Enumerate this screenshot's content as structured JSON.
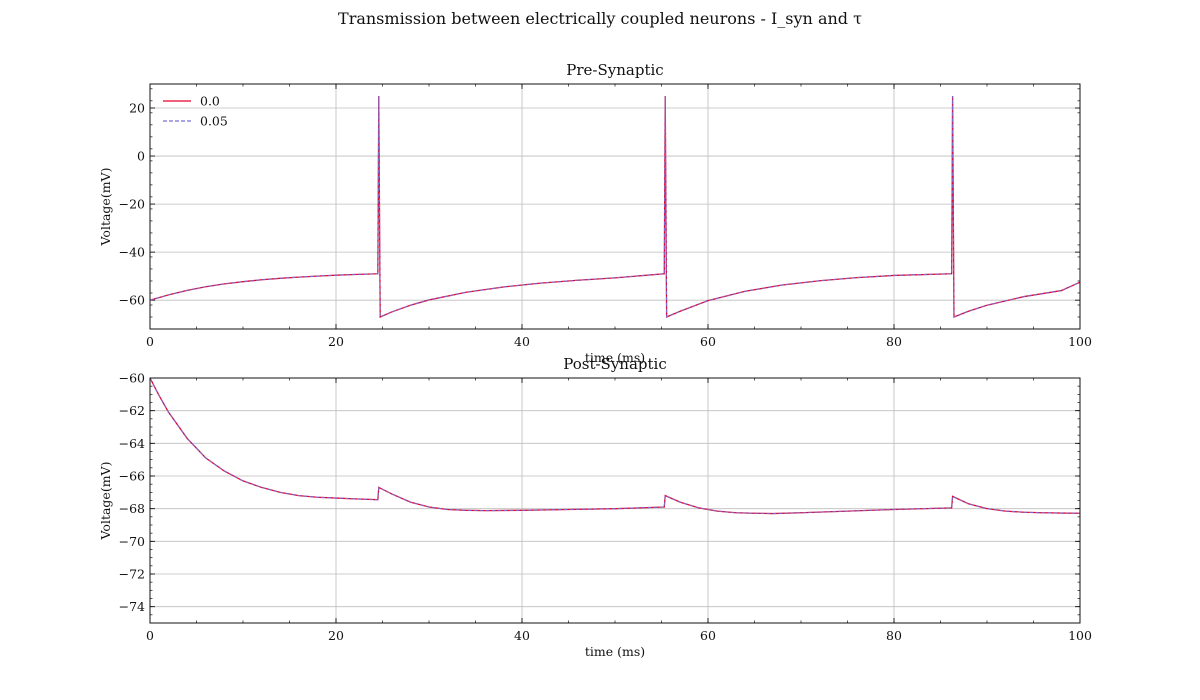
{
  "figure": {
    "suptitle": "Transmission between electrically coupled neurons - I_syn and τ"
  },
  "colors": {
    "solid": "#e8002a",
    "dashed": "#7a6fd4",
    "grid": "#bdbdbd",
    "axis": "#111111"
  },
  "chart_data": [
    {
      "type": "line",
      "title": "Pre-Synaptic",
      "xlabel": "time (ms)",
      "ylabel": "Voltage(mV)",
      "xlim": [
        0,
        100
      ],
      "ylim": [
        -72,
        30
      ],
      "xticks": [
        0,
        20,
        40,
        60,
        80,
        100
      ],
      "xtick_labels": [
        "0",
        "20",
        "40",
        "60",
        "80",
        "100"
      ],
      "yticks": [
        20,
        0,
        -20,
        -40,
        -60
      ],
      "ytick_labels": [
        "20",
        "0",
        "−20",
        "−40",
        "−60"
      ],
      "grid": true,
      "legend": "top-left",
      "series": [
        {
          "name": "0.0",
          "style": "solid",
          "x": [
            0,
            2,
            4,
            6,
            8,
            10,
            12,
            14,
            16,
            18,
            20,
            22,
            24.5,
            24.6,
            24.75,
            26,
            28,
            30,
            34,
            38,
            42,
            46,
            50,
            55.3,
            55.4,
            55.55,
            57,
            60,
            64,
            68,
            72,
            76,
            80,
            86.2,
            86.3,
            86.45,
            88,
            90,
            94,
            98,
            100
          ],
          "y": [
            -60,
            -57.8,
            -55.9,
            -54.4,
            -53.2,
            -52.3,
            -51.5,
            -50.9,
            -50.4,
            -50,
            -49.6,
            -49.3,
            -49,
            25,
            -67,
            -64.9,
            -62.1,
            -59.9,
            -56.7,
            -54.5,
            -52.9,
            -51.7,
            -50.7,
            -49,
            25,
            -67,
            -64.6,
            -60.2,
            -56.3,
            -53.7,
            -51.9,
            -50.6,
            -49.7,
            -49,
            25,
            -67,
            -64.6,
            -62.1,
            -58.5,
            -56,
            -52.5
          ]
        },
        {
          "name": "0.05",
          "style": "dashed",
          "x": [
            0,
            2,
            4,
            6,
            8,
            10,
            12,
            14,
            16,
            18,
            20,
            22,
            24.5,
            24.6,
            24.75,
            26,
            28,
            30,
            34,
            38,
            42,
            46,
            50,
            55.3,
            55.4,
            55.55,
            57,
            60,
            64,
            68,
            72,
            76,
            80,
            86.2,
            86.3,
            86.45,
            88,
            90,
            94,
            98,
            100
          ],
          "y": [
            -60,
            -57.8,
            -55.9,
            -54.4,
            -53.2,
            -52.3,
            -51.5,
            -50.9,
            -50.4,
            -50,
            -49.6,
            -49.3,
            -49,
            25,
            -67,
            -64.9,
            -62.1,
            -59.9,
            -56.7,
            -54.5,
            -52.9,
            -51.7,
            -50.7,
            -49,
            25,
            -67,
            -64.6,
            -60.2,
            -56.3,
            -53.7,
            -51.9,
            -50.6,
            -49.7,
            -49,
            25,
            -67,
            -64.6,
            -62.1,
            -58.5,
            -56,
            -52.5
          ]
        }
      ]
    },
    {
      "type": "line",
      "title": "Post-Synaptic",
      "xlabel": "time (ms)",
      "ylabel": "Voltage(mV)",
      "xlim": [
        0,
        100
      ],
      "ylim": [
        -75,
        -60
      ],
      "xticks": [
        0,
        20,
        40,
        60,
        80,
        100
      ],
      "xtick_labels": [
        "0",
        "20",
        "40",
        "60",
        "80",
        "100"
      ],
      "yticks": [
        -60,
        -62,
        -64,
        -66,
        -68,
        -70,
        -72,
        -74
      ],
      "ytick_labels": [
        "−60",
        "−62",
        "−64",
        "−66",
        "−68",
        "−70",
        "−72",
        "−74"
      ],
      "grid": true,
      "series": [
        {
          "name": "0.0",
          "style": "solid",
          "x": [
            0,
            1,
            2,
            4,
            6,
            8,
            10,
            12,
            14,
            16,
            18,
            20,
            22,
            24.5,
            24.6,
            26,
            28,
            30,
            32,
            34,
            36,
            40,
            45,
            50,
            55.3,
            55.4,
            57,
            59,
            61,
            63,
            65,
            67,
            70,
            75,
            80,
            86.2,
            86.3,
            88,
            90,
            92,
            94,
            96,
            98,
            100
          ],
          "y": [
            -60,
            -61.1,
            -62.1,
            -63.7,
            -64.9,
            -65.7,
            -66.3,
            -66.7,
            -67,
            -67.2,
            -67.3,
            -67.35,
            -67.4,
            -67.45,
            -66.7,
            -67.1,
            -67.6,
            -67.9,
            -68.05,
            -68.1,
            -68.12,
            -68.1,
            -68.05,
            -68,
            -67.9,
            -67.2,
            -67.6,
            -67.95,
            -68.15,
            -68.25,
            -68.28,
            -68.3,
            -68.25,
            -68.15,
            -68.05,
            -67.95,
            -67.25,
            -67.7,
            -68,
            -68.15,
            -68.22,
            -68.25,
            -68.27,
            -68.28
          ]
        },
        {
          "name": "0.05",
          "style": "dashed",
          "x": [
            0,
            1,
            2,
            4,
            6,
            8,
            10,
            12,
            14,
            16,
            18,
            20,
            22,
            24.5,
            24.6,
            26,
            28,
            30,
            32,
            34,
            36,
            40,
            45,
            50,
            55.3,
            55.4,
            57,
            59,
            61,
            63,
            65,
            67,
            70,
            75,
            80,
            86.2,
            86.3,
            88,
            90,
            92,
            94,
            96,
            98,
            100
          ],
          "y": [
            -60,
            -61.1,
            -62.1,
            -63.7,
            -64.9,
            -65.7,
            -66.3,
            -66.7,
            -67,
            -67.2,
            -67.3,
            -67.35,
            -67.4,
            -67.45,
            -66.7,
            -67.1,
            -67.6,
            -67.9,
            -68.05,
            -68.1,
            -68.12,
            -68.1,
            -68.05,
            -68,
            -67.9,
            -67.2,
            -67.6,
            -67.95,
            -68.15,
            -68.25,
            -68.28,
            -68.3,
            -68.25,
            -68.15,
            -68.05,
            -67.95,
            -67.25,
            -67.7,
            -68,
            -68.15,
            -68.22,
            -68.25,
            -68.27,
            -68.28
          ]
        }
      ]
    }
  ]
}
